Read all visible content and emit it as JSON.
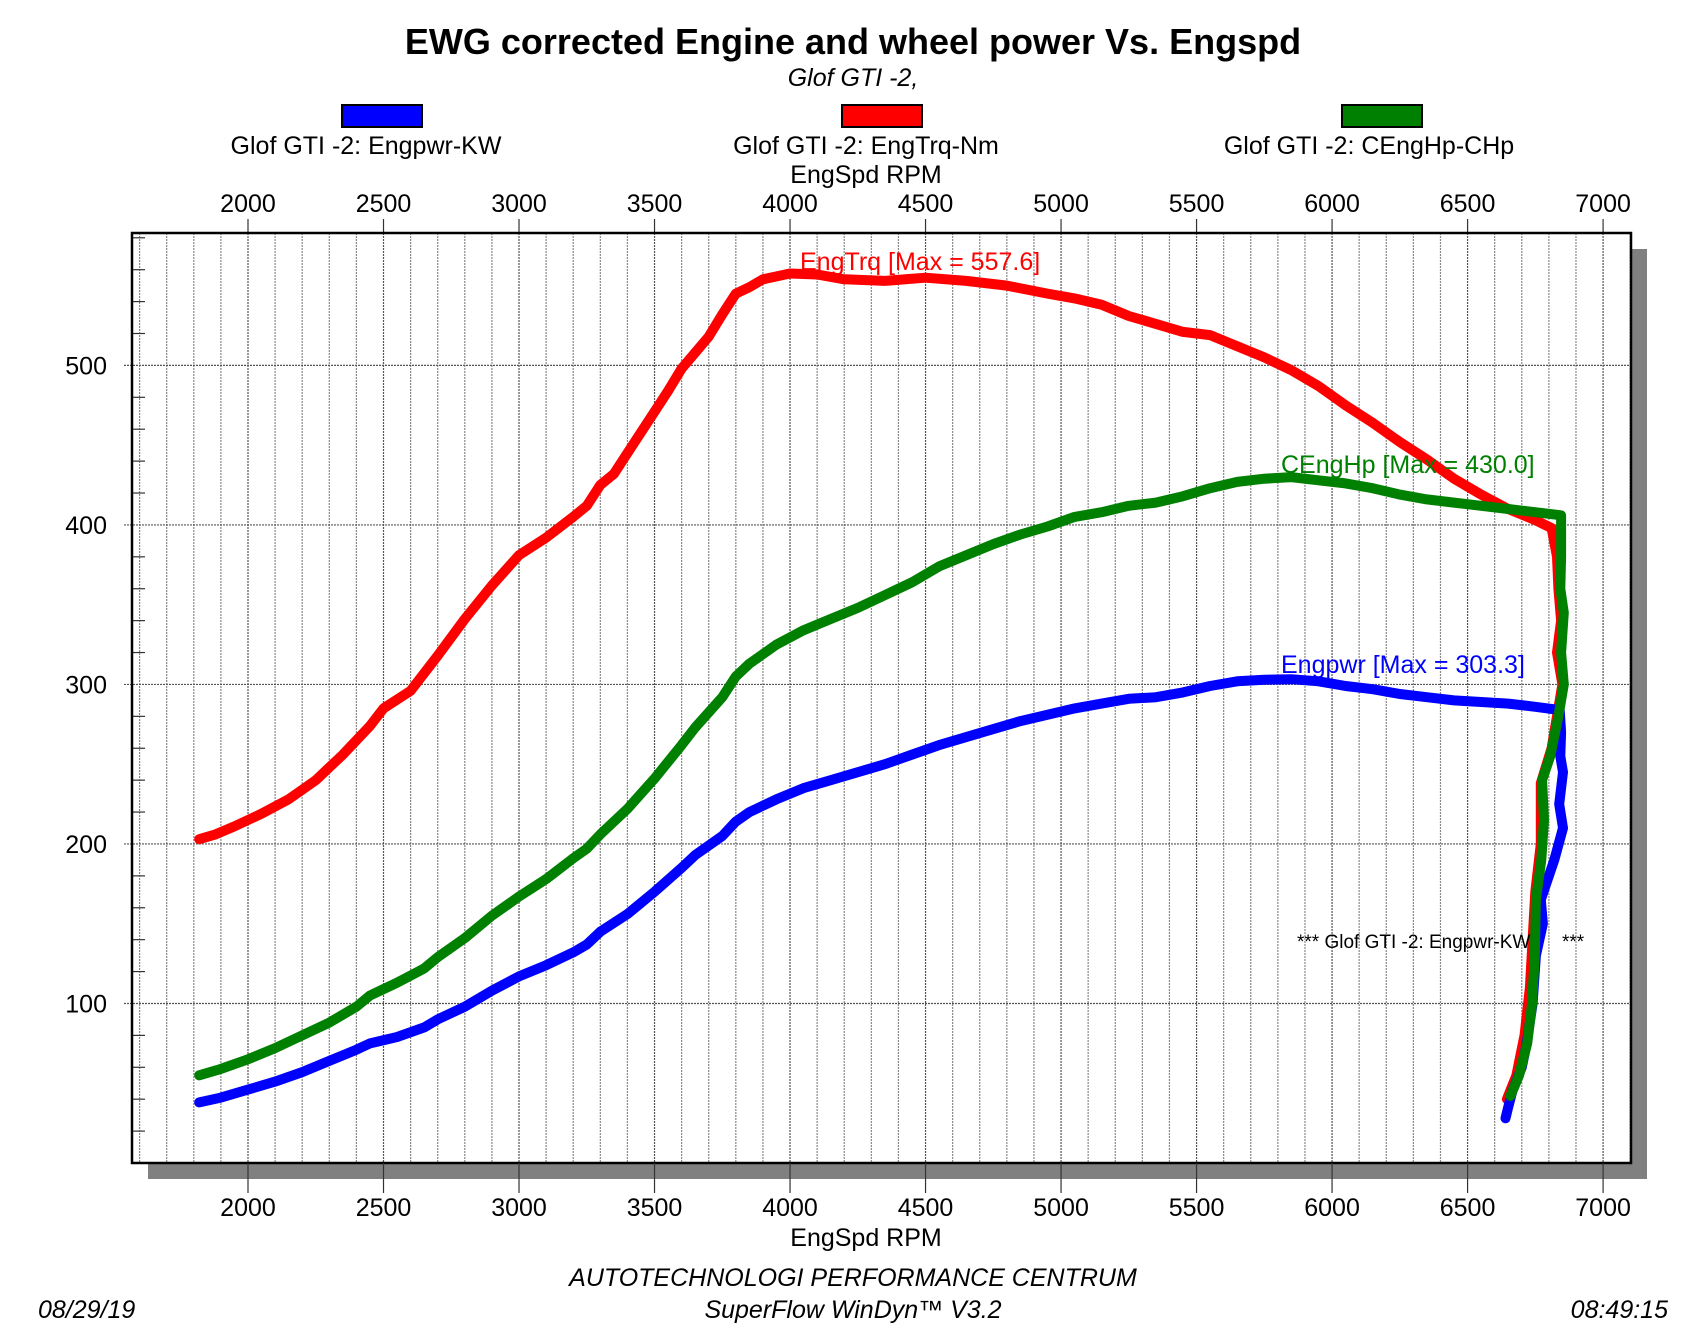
{
  "chart_data": {
    "type": "line",
    "title": "EWG corrected Engine and wheel power Vs. Engspd",
    "subtitle": "Glof GTI -2,",
    "xlabel_top": "EngSpd RPM",
    "xlabel": "EngSpd RPM",
    "ylabel": "",
    "xlim": [
      1572,
      7103
    ],
    "ylim": [
      0,
      583
    ],
    "x_ticks": [
      2000,
      2500,
      3000,
      3500,
      4000,
      4500,
      5000,
      5500,
      6000,
      6500,
      7000
    ],
    "x_tick_labels": [
      "2000",
      "2500",
      "3000",
      "3500",
      "4000",
      "4500",
      "5000",
      "5500",
      "6000",
      "6500",
      "7000"
    ],
    "x_minor_step": 100,
    "y_ticks": [
      100,
      200,
      300,
      400,
      500
    ],
    "y_tick_labels": [
      "100",
      "200",
      "300",
      "400",
      "500"
    ],
    "y_minor_step": 20,
    "grid": true,
    "legend_position": "top",
    "series": [
      {
        "name": "Glof GTI -2: Engpwr-KW",
        "short": "Engpwr",
        "color": "#0000ff",
        "max_label": "Engpwr [Max = 303.3]",
        "max": 303.3,
        "points": [
          [
            1820,
            38
          ],
          [
            1900,
            41
          ],
          [
            2000,
            46
          ],
          [
            2100,
            51
          ],
          [
            2200,
            57
          ],
          [
            2300,
            64
          ],
          [
            2400,
            71
          ],
          [
            2450,
            75
          ],
          [
            2550,
            79
          ],
          [
            2650,
            85
          ],
          [
            2700,
            90
          ],
          [
            2800,
            98
          ],
          [
            2900,
            108
          ],
          [
            3000,
            117
          ],
          [
            3100,
            124
          ],
          [
            3200,
            132
          ],
          [
            3250,
            137
          ],
          [
            3300,
            145
          ],
          [
            3400,
            156
          ],
          [
            3500,
            170
          ],
          [
            3600,
            185
          ],
          [
            3650,
            193
          ],
          [
            3750,
            205
          ],
          [
            3800,
            214
          ],
          [
            3850,
            220
          ],
          [
            3950,
            228
          ],
          [
            4050,
            235
          ],
          [
            4150,
            240
          ],
          [
            4250,
            245
          ],
          [
            4350,
            250
          ],
          [
            4450,
            256
          ],
          [
            4550,
            262
          ],
          [
            4650,
            267
          ],
          [
            4750,
            272
          ],
          [
            4850,
            277
          ],
          [
            4950,
            281
          ],
          [
            5050,
            285
          ],
          [
            5150,
            288
          ],
          [
            5250,
            291
          ],
          [
            5350,
            292
          ],
          [
            5450,
            295
          ],
          [
            5550,
            299
          ],
          [
            5650,
            302
          ],
          [
            5750,
            303
          ],
          [
            5850,
            303.3
          ],
          [
            5950,
            302
          ],
          [
            6050,
            299
          ],
          [
            6150,
            297
          ],
          [
            6250,
            294
          ],
          [
            6350,
            292
          ],
          [
            6450,
            290
          ],
          [
            6550,
            289
          ],
          [
            6650,
            288
          ],
          [
            6750,
            286
          ],
          [
            6840,
            284
          ],
          [
            6845,
            270
          ],
          [
            6842,
            255
          ],
          [
            6852,
            245
          ],
          [
            6838,
            225
          ],
          [
            6852,
            210
          ],
          [
            6820,
            190
          ],
          [
            6790,
            175
          ],
          [
            6770,
            165
          ],
          [
            6778,
            150
          ],
          [
            6752,
            130
          ],
          [
            6740,
            100
          ],
          [
            6718,
            75
          ],
          [
            6700,
            60
          ],
          [
            6665,
            45
          ],
          [
            6650,
            35
          ],
          [
            6640,
            28
          ]
        ]
      },
      {
        "name": "Glof GTI -2: EngTrq-Nm",
        "short": "EngTrq",
        "color": "#ff0000",
        "max_label": "EngTrq [Max = 557.6]",
        "max": 557.6,
        "points": [
          [
            1820,
            203
          ],
          [
            1880,
            206
          ],
          [
            1950,
            211
          ],
          [
            2050,
            219
          ],
          [
            2150,
            228
          ],
          [
            2250,
            240
          ],
          [
            2300,
            248
          ],
          [
            2350,
            256
          ],
          [
            2450,
            274
          ],
          [
            2500,
            285
          ],
          [
            2600,
            296
          ],
          [
            2700,
            318
          ],
          [
            2800,
            341
          ],
          [
            2900,
            362
          ],
          [
            3000,
            381
          ],
          [
            3100,
            392
          ],
          [
            3200,
            405
          ],
          [
            3250,
            412
          ],
          [
            3300,
            425
          ],
          [
            3350,
            432
          ],
          [
            3400,
            445
          ],
          [
            3500,
            471
          ],
          [
            3550,
            484
          ],
          [
            3600,
            498
          ],
          [
            3650,
            508
          ],
          [
            3700,
            518
          ],
          [
            3750,
            532
          ],
          [
            3800,
            545
          ],
          [
            3850,
            549
          ],
          [
            3900,
            554
          ],
          [
            4000,
            557.6
          ],
          [
            4100,
            557
          ],
          [
            4200,
            554
          ],
          [
            4350,
            553
          ],
          [
            4500,
            555
          ],
          [
            4650,
            553
          ],
          [
            4800,
            550
          ],
          [
            4950,
            545
          ],
          [
            5050,
            542
          ],
          [
            5150,
            538
          ],
          [
            5250,
            531
          ],
          [
            5350,
            526
          ],
          [
            5450,
            521
          ],
          [
            5550,
            519
          ],
          [
            5650,
            512
          ],
          [
            5750,
            505
          ],
          [
            5850,
            497
          ],
          [
            5950,
            487
          ],
          [
            6050,
            475
          ],
          [
            6150,
            464
          ],
          [
            6250,
            452
          ],
          [
            6350,
            441
          ],
          [
            6450,
            429
          ],
          [
            6550,
            419
          ],
          [
            6650,
            410
          ],
          [
            6750,
            403
          ],
          [
            6810,
            398
          ],
          [
            6830,
            380
          ],
          [
            6835,
            360
          ],
          [
            6845,
            340
          ],
          [
            6830,
            320
          ],
          [
            6850,
            300
          ],
          [
            6830,
            280
          ],
          [
            6810,
            260
          ],
          [
            6770,
            238
          ],
          [
            6770,
            200
          ],
          [
            6750,
            170
          ],
          [
            6740,
            140
          ],
          [
            6730,
            110
          ],
          [
            6710,
            80
          ],
          [
            6680,
            55
          ],
          [
            6645,
            40
          ]
        ]
      },
      {
        "name": "Glof GTI -2: CEngHp-CHp",
        "short": "CEngHp",
        "color": "#008000",
        "max_label": "CEngHp [Max = 430.0]",
        "max": 430.0,
        "points": [
          [
            1820,
            55
          ],
          [
            1900,
            59
          ],
          [
            2000,
            65
          ],
          [
            2100,
            72
          ],
          [
            2200,
            80
          ],
          [
            2300,
            88
          ],
          [
            2400,
            98
          ],
          [
            2450,
            105
          ],
          [
            2550,
            113
          ],
          [
            2650,
            122
          ],
          [
            2700,
            129
          ],
          [
            2800,
            141
          ],
          [
            2900,
            155
          ],
          [
            3000,
            167
          ],
          [
            3100,
            178
          ],
          [
            3200,
            191
          ],
          [
            3250,
            197
          ],
          [
            3300,
            206
          ],
          [
            3400,
            222
          ],
          [
            3500,
            241
          ],
          [
            3600,
            262
          ],
          [
            3650,
            273
          ],
          [
            3750,
            292
          ],
          [
            3800,
            305
          ],
          [
            3850,
            313
          ],
          [
            3950,
            325
          ],
          [
            4050,
            334
          ],
          [
            4150,
            341
          ],
          [
            4250,
            348
          ],
          [
            4350,
            356
          ],
          [
            4450,
            364
          ],
          [
            4550,
            374
          ],
          [
            4650,
            381
          ],
          [
            4750,
            388
          ],
          [
            4850,
            394
          ],
          [
            4950,
            399
          ],
          [
            5050,
            405
          ],
          [
            5150,
            408
          ],
          [
            5250,
            412
          ],
          [
            5350,
            414
          ],
          [
            5450,
            418
          ],
          [
            5550,
            423
          ],
          [
            5650,
            427
          ],
          [
            5750,
            429
          ],
          [
            5850,
            430
          ],
          [
            5950,
            428
          ],
          [
            6050,
            426
          ],
          [
            6150,
            423
          ],
          [
            6250,
            419
          ],
          [
            6350,
            416
          ],
          [
            6450,
            414
          ],
          [
            6550,
            412
          ],
          [
            6650,
            410
          ],
          [
            6750,
            408
          ],
          [
            6845,
            406
          ],
          [
            6845,
            380
          ],
          [
            6842,
            360
          ],
          [
            6855,
            345
          ],
          [
            6845,
            320
          ],
          [
            6855,
            300
          ],
          [
            6835,
            280
          ],
          [
            6805,
            255
          ],
          [
            6775,
            240
          ],
          [
            6782,
            215
          ],
          [
            6772,
            190
          ],
          [
            6752,
            165
          ],
          [
            6748,
            130
          ],
          [
            6738,
            100
          ],
          [
            6720,
            75
          ],
          [
            6690,
            55
          ],
          [
            6658,
            42
          ]
        ]
      }
    ],
    "annotation": "*** Glof GTI -2: Engpwr-KW      ***"
  },
  "footer": {
    "company": "AUTOTECHNOLOGI PERFORMANCE CENTRUM",
    "software": "SuperFlow WinDyn™ V3.2",
    "date": "08/29/19",
    "time": "08:49:15"
  }
}
